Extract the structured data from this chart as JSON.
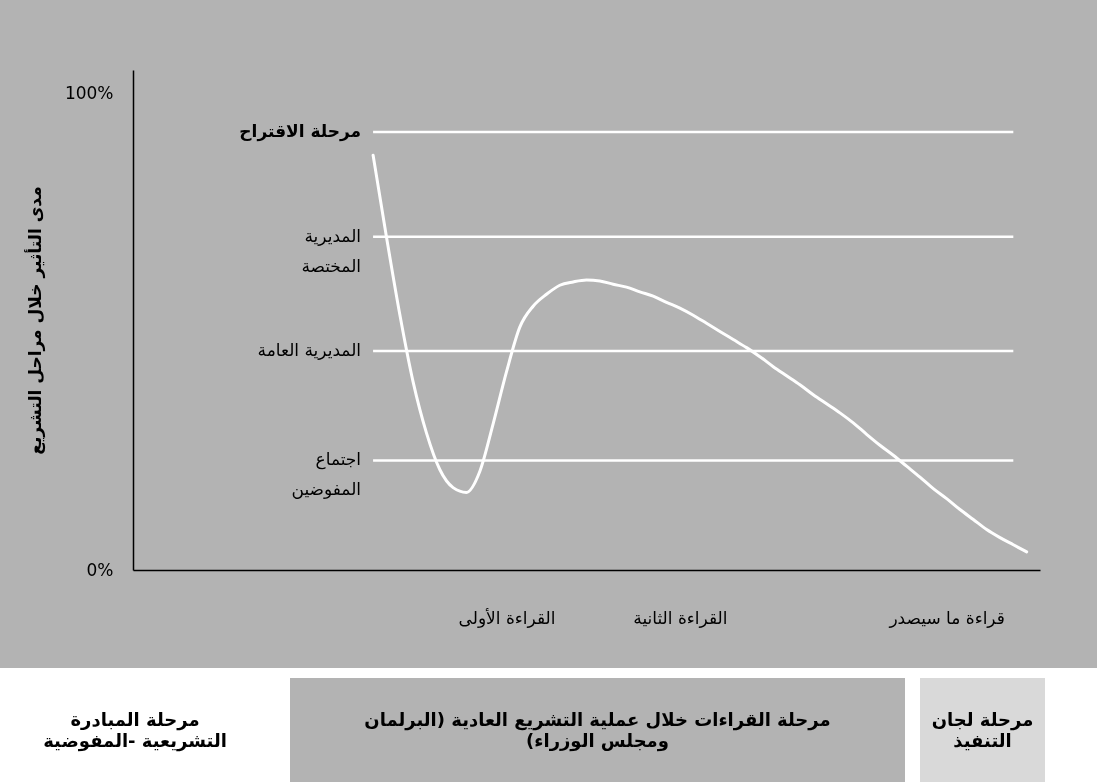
{
  "chart_data": {
    "type": "line",
    "ylabel": "مدى التأثير خلال مراحل التشريع",
    "categories": [
      null,
      null,
      null,
      null,
      null,
      null,
      null,
      null,
      null,
      null,
      null,
      null,
      null,
      null,
      null,
      null,
      null,
      null,
      null,
      null,
      null,
      null,
      null,
      null,
      null,
      null,
      null,
      null,
      "القراءة الأولى",
      null,
      null,
      null,
      null,
      null,
      null,
      null,
      null,
      null,
      null,
      null,
      null,
      "القراءة الثانية",
      null,
      null,
      null,
      null,
      null,
      null,
      null,
      null,
      null,
      null,
      null,
      null,
      null,
      null,
      null,
      null,
      null,
      null,
      null,
      "قراءة ما سيصدر",
      null,
      null,
      null,
      null,
      null,
      null,
      null
    ],
    "series": [
      {
        "color": "#ffffff",
        "values": [
          null,
          null,
          null,
          null,
          null,
          null,
          null,
          null,
          null,
          null,
          null,
          null,
          null,
          null,
          null,
          null,
          null,
          null,
          87.1,
          70.0,
          53.7,
          39.5,
          28.8,
          21.1,
          17.3,
          16.3,
          20.7,
          30.7,
          41.6,
          51.0,
          55.4,
          57.9,
          59.8,
          60.5,
          60.9,
          60.7,
          60.0,
          59.4,
          58.4,
          57.5,
          56.2,
          55.0,
          53.5,
          51.8,
          50.1,
          48.4,
          46.7,
          44.8,
          42.7,
          40.8,
          38.9,
          36.8,
          34.9,
          33.0,
          30.9,
          28.5,
          26.2,
          24.1,
          21.8,
          19.5,
          17.1,
          15.0,
          12.7,
          10.6,
          8.5,
          6.8,
          5.3,
          3.8,
          null
        ]
      }
    ],
    "ylim": [
      0,
      105
    ],
    "yticks": [
      {
        "value": 0,
        "label": "0%"
      },
      {
        "value": 100,
        "label": "100%"
      }
    ],
    "ref_lines": [
      {
        "axis": "y",
        "value": 92,
        "label": "مرحلة الاقتراح",
        "color": "#ffffff"
      },
      {
        "axis": "y",
        "value": 70,
        "label": "المديرية\nالمختصة",
        "color": "#ffffff"
      },
      {
        "axis": "y",
        "value": 46,
        "label": "المديرية العامة",
        "color": "#ffffff"
      },
      {
        "axis": "y",
        "value": 23,
        "label": "اجتماع\nالمفوضين",
        "color": "#ffffff"
      }
    ],
    "annotations": [
      "مرحلة المبادرة\nالتشريعية -المفوضية",
      "مرحلة القراءات خلال عملية التشريع العادية (البرلمان\nومجلس الوزراء)",
      "مرحلة لجان\nالتنفيذ"
    ],
    "grid": false,
    "marker": "none",
    "line_style": "solid"
  }
}
